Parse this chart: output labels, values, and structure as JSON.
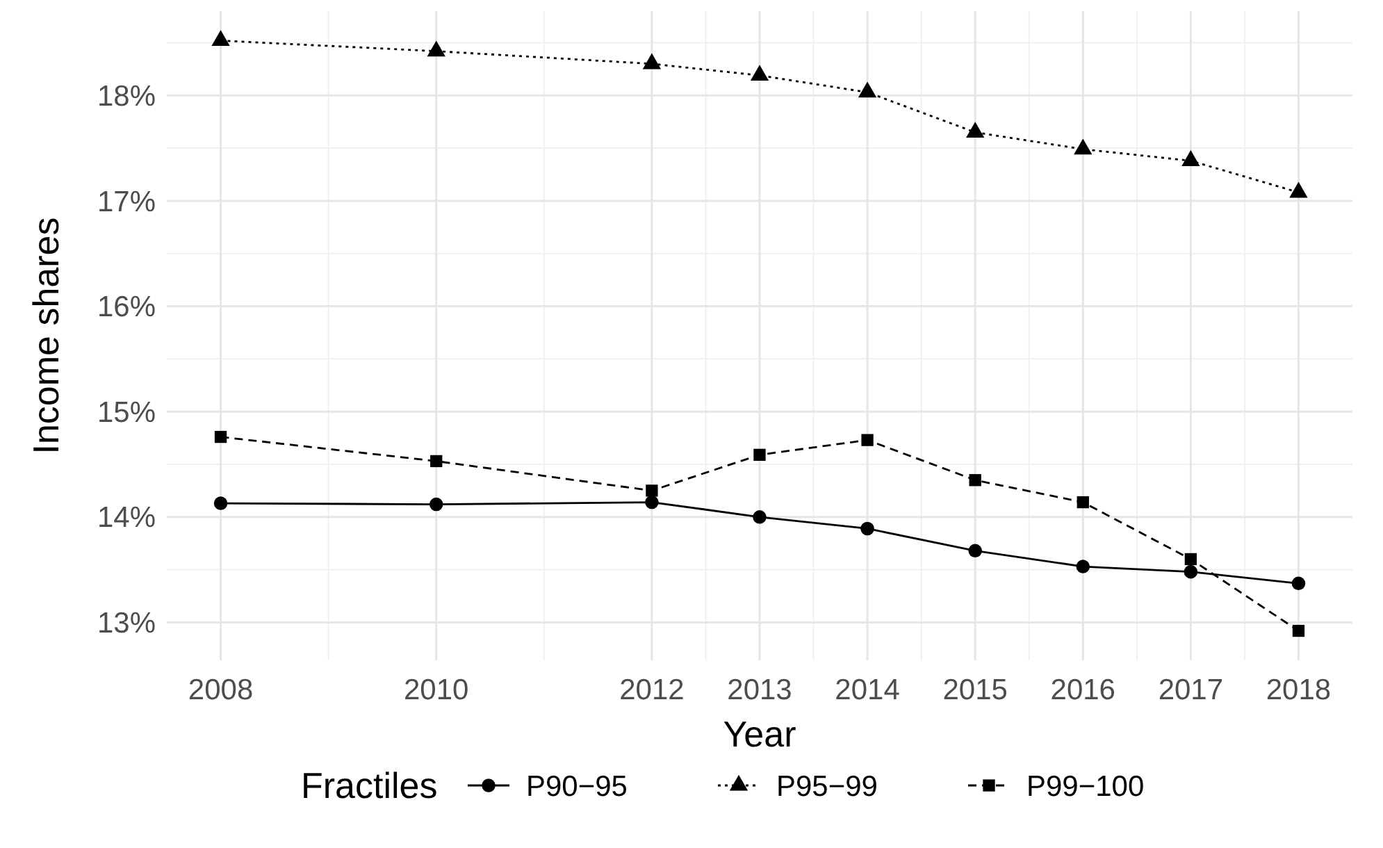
{
  "chart_data": {
    "type": "line",
    "xlabel": "Year",
    "ylabel": "Income shares",
    "legend_title": "Fractiles",
    "legend": "bottom",
    "grid": true,
    "x": [
      2008,
      2010,
      2012,
      2013,
      2014,
      2015,
      2016,
      2017,
      2018
    ],
    "xlim": [
      2007.5,
      2018.5
    ],
    "xticks": [
      2008,
      2010,
      2012,
      2013,
      2014,
      2015,
      2016,
      2017,
      2018
    ],
    "ylim": [
      12.64,
      18.8
    ],
    "yticks": [
      {
        "value": 13,
        "label": "13%"
      },
      {
        "value": 14,
        "label": "14%"
      },
      {
        "value": 15,
        "label": "15%"
      },
      {
        "value": 16,
        "label": "16%"
      },
      {
        "value": 17,
        "label": "17%"
      },
      {
        "value": 18,
        "label": "18%"
      }
    ],
    "series": [
      {
        "name": "P90−95",
        "color": "#000000",
        "marker": "circle",
        "line_style": "solid",
        "values": [
          14.13,
          14.12,
          14.14,
          14.0,
          13.89,
          13.68,
          13.53,
          13.48,
          13.37
        ]
      },
      {
        "name": "P95−99",
        "color": "#000000",
        "marker": "triangle",
        "line_style": "dotted",
        "values": [
          18.52,
          18.42,
          18.3,
          18.19,
          18.03,
          17.65,
          17.49,
          17.38,
          17.08
        ]
      },
      {
        "name": "P99−100",
        "color": "#000000",
        "marker": "square",
        "line_style": "dashed",
        "values": [
          14.76,
          14.53,
          14.25,
          14.59,
          14.73,
          14.35,
          14.14,
          13.6,
          12.92
        ]
      }
    ]
  }
}
